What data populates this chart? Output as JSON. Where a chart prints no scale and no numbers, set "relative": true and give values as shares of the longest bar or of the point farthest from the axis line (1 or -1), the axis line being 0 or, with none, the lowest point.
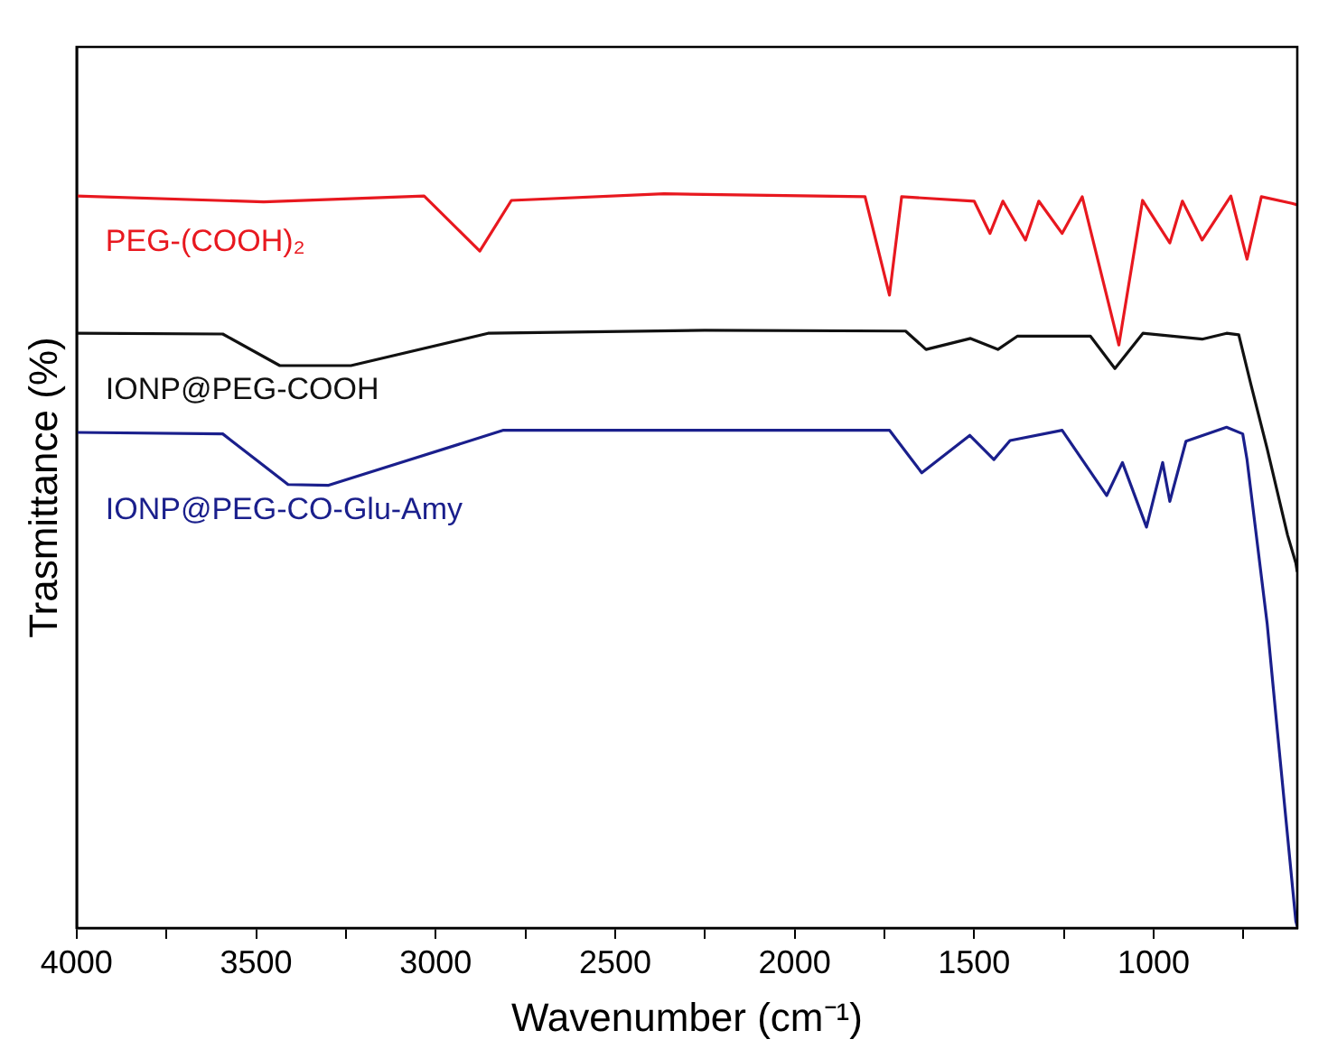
{
  "chart_data": {
    "type": "line",
    "relative": true,
    "xlabel": "Wavenumber (cm⁻¹)",
    "ylabel": "Trasmittance (%)",
    "xlim": [
      4000,
      600
    ],
    "xticks": [
      4000,
      {
        "value": 3750,
        "label": null
      },
      3500,
      {
        "value": 3250,
        "label": null
      },
      3000,
      {
        "value": 2750,
        "label": null
      },
      2500,
      {
        "value": 2250,
        "label": null
      },
      2000,
      {
        "value": 1750,
        "label": null
      },
      1500,
      {
        "value": 1250,
        "label": null
      },
      1000,
      {
        "value": 750,
        "label": null
      }
    ],
    "grid": false,
    "legend": false,
    "marker": "none",
    "line_style": "solid",
    "series": [
      {
        "name": "PEG-(COOH)₂",
        "color": "#e8181f",
        "x": [
          4000,
          3479,
          3032,
          2877,
          2789,
          2364,
          1804,
          1736,
          1702,
          1500,
          1456,
          1420,
          1357,
          1320,
          1255,
          1199,
          1097,
          1031,
          955,
          920,
          865,
          785,
          740,
          700,
          615,
          600
        ],
        "values": [
          0.997,
          0.989,
          0.997,
          0.922,
          0.991,
          1,
          0.996,
          0.862,
          0.996,
          0.99,
          0.946,
          0.99,
          0.937,
          0.99,
          0.946,
          0.996,
          0.794,
          0.991,
          0.933,
          0.99,
          0.937,
          0.997,
          0.911,
          0.996,
          0.987,
          0.985
        ]
      },
      {
        "name": "IONP@PEG-COOH",
        "color": "#111111",
        "x": [
          4000,
          3593,
          3434,
          3236,
          2854,
          2251,
          1691,
          1634,
          1510,
          1434,
          1380,
          1176,
          1108,
          1030,
          865,
          797,
          763,
          729,
          684,
          627,
          604,
          600
        ],
        "values": [
          0.81,
          0.809,
          0.766,
          0.766,
          0.81,
          0.814,
          0.813,
          0.788,
          0.803,
          0.788,
          0.806,
          0.806,
          0.762,
          0.81,
          0.802,
          0.81,
          0.808,
          0.74,
          0.653,
          0.535,
          0.497,
          0.485
        ]
      },
      {
        "name": "IONP@PEG-CO-Glu-Amy",
        "color": "#1a1f8c",
        "x": [
          4000,
          3593,
          3411,
          3298,
          2811,
          2251,
          1736,
          1646,
          1512,
          1445,
          1400,
          1255,
          1131,
          1087,
          1020,
          975,
          955,
          910,
          797,
          752,
          740,
          684,
          655,
          604,
          600
        ],
        "values": [
          0.675,
          0.673,
          0.604,
          0.603,
          0.678,
          0.678,
          0.678,
          0.62,
          0.671,
          0.638,
          0.664,
          0.678,
          0.589,
          0.634,
          0.546,
          0.634,
          0.581,
          0.663,
          0.682,
          0.673,
          0.638,
          0.415,
          0.266,
          0.009,
          0.002
        ]
      }
    ]
  }
}
